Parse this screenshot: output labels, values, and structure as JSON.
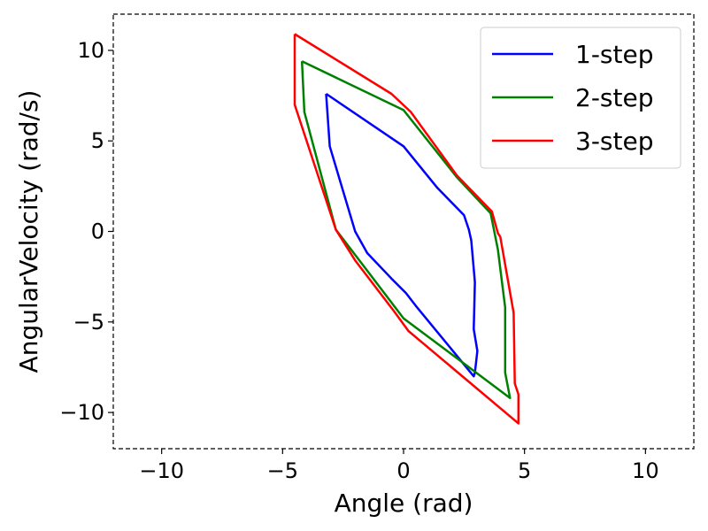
{
  "chart_data": {
    "type": "line",
    "title": "",
    "xlabel": "Angle (rad)",
    "ylabel": "AngularVelocity (rad/s)",
    "xlim": [
      -12,
      12
    ],
    "ylim": [
      -12,
      12
    ],
    "x_ticks": [
      -10,
      -5,
      0,
      5,
      10
    ],
    "y_ticks": [
      -10,
      -5,
      0,
      5,
      10
    ],
    "x_tick_labels": [
      "−10",
      "−5",
      "0",
      "5",
      "10"
    ],
    "y_tick_labels": [
      "−10",
      "−5",
      "0",
      "5",
      "10"
    ],
    "grid": false,
    "frame_style": "dashed",
    "legend_position": "top-right",
    "series": [
      {
        "name": "1-step",
        "color": "#0000ff",
        "points": [
          [
            -3.2,
            7.6
          ],
          [
            0.0,
            4.7
          ],
          [
            1.4,
            2.4
          ],
          [
            2.5,
            0.9
          ],
          [
            2.7,
            0.1
          ],
          [
            2.8,
            -0.5
          ],
          [
            2.95,
            -2.8
          ],
          [
            2.9,
            -5.4
          ],
          [
            3.05,
            -6.6
          ],
          [
            2.95,
            -7.8
          ],
          [
            2.9,
            -8.0
          ],
          [
            0.5,
            -4.1
          ],
          [
            0.1,
            -3.4
          ],
          [
            -0.5,
            -2.6
          ],
          [
            -1.5,
            -1.2
          ],
          [
            -2.0,
            0.0
          ],
          [
            -3.05,
            4.7
          ],
          [
            -3.2,
            7.6
          ]
        ]
      },
      {
        "name": "2-step",
        "color": "#008000",
        "points": [
          [
            -4.2,
            9.4
          ],
          [
            0.0,
            6.7
          ],
          [
            2.2,
            3.0
          ],
          [
            3.6,
            1.0
          ],
          [
            3.9,
            -1.0
          ],
          [
            4.2,
            -4.2
          ],
          [
            4.2,
            -7.8
          ],
          [
            4.4,
            -9.2
          ],
          [
            0.0,
            -4.8
          ],
          [
            -1.6,
            -2.0
          ],
          [
            -2.8,
            0.1
          ],
          [
            -4.1,
            6.6
          ],
          [
            -4.2,
            9.4
          ]
        ]
      },
      {
        "name": "3-step",
        "color": "#ff0000",
        "points": [
          [
            -4.5,
            10.9
          ],
          [
            -0.5,
            7.6
          ],
          [
            0.3,
            6.6
          ],
          [
            2.2,
            3.1
          ],
          [
            3.65,
            1.1
          ],
          [
            3.9,
            -0.1
          ],
          [
            4.0,
            -0.3
          ],
          [
            4.55,
            -4.5
          ],
          [
            4.6,
            -8.4
          ],
          [
            4.75,
            -9.0
          ],
          [
            4.75,
            -10.6
          ],
          [
            0.2,
            -5.5
          ],
          [
            -0.4,
            -4.4
          ],
          [
            -2.0,
            -1.6
          ],
          [
            -2.8,
            0.1
          ],
          [
            -4.5,
            7.0
          ],
          [
            -4.5,
            10.9
          ]
        ]
      }
    ]
  }
}
